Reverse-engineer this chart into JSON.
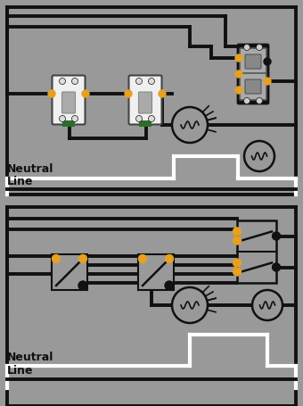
{
  "bg_color": "#999999",
  "line_color": "#111111",
  "white_wire": "#ffffff",
  "orange_color": "#E8A020",
  "green_color": "#2A6E2A",
  "dark_color": "#111111",
  "switch_fill": "#f0f0f0",
  "switch_border": "#444444",
  "duplex_fill": "#aaaaaa",
  "neutral_label": "Neutral",
  "line_label": "Line",
  "lw_main": 2.8,
  "lw_white": 3.0
}
